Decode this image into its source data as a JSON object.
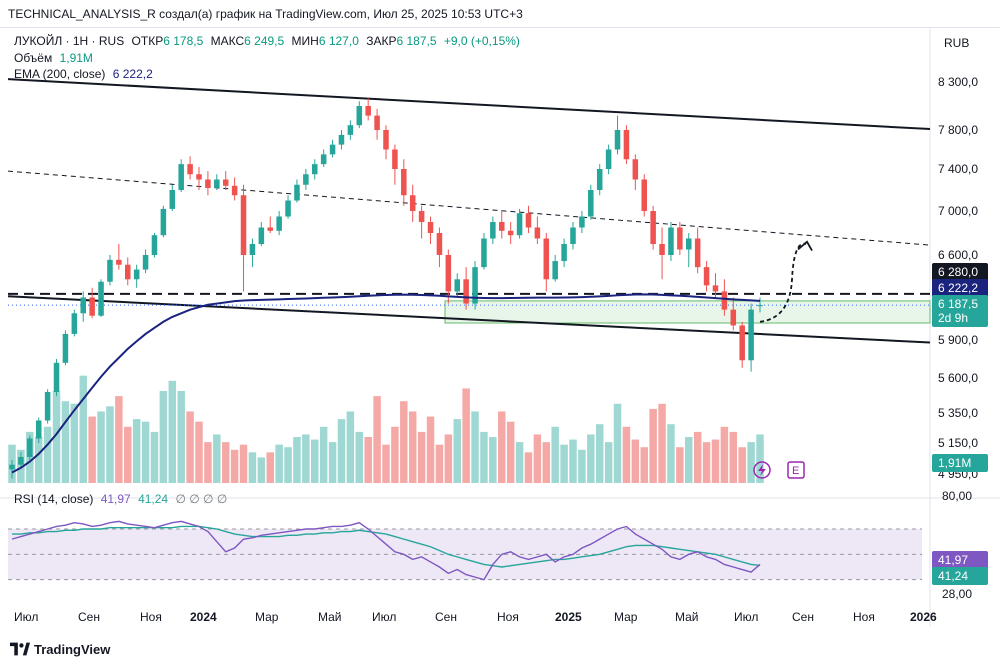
{
  "header": {
    "text": "TECHNICAL_ANALYSIS_R создал(а) график на TradingView.com, Июл 25, 2025 10:53 UTC+3"
  },
  "legend": {
    "symbol": "ЛУКОЙЛ · 1Н · RUS",
    "open_label": "ОТКР",
    "open": "6 178,5",
    "high_label": "МАКС",
    "high": "6 249,5",
    "low_label": "МИН",
    "low": "6 127,0",
    "close_label": "ЗАКР",
    "close": "6 187,5",
    "change": "+9,0 (+0,15%)",
    "volume_label": "Объём",
    "volume": "1,91M",
    "ema_label": "EMA (200, close)",
    "ema": "6 222,2",
    "rsi_label": "RSI (14, close)",
    "rsi": "41,97",
    "rsi_ma": "41,24",
    "rsi_extras": "∅ ∅ ∅ ∅"
  },
  "currency": "RUB",
  "branding": "TradingView",
  "colors": {
    "up": "#26a69a",
    "down": "#ef5350",
    "ema": "#1a237e",
    "rsi": "#7e57c2",
    "rsi_ma": "#26a69a",
    "band": "#ede7f6",
    "support_zone": "#e8f5e9"
  },
  "icons": [
    "flash-icon",
    "earnings-e-icon"
  ],
  "chart_data": {
    "type": "candlestick",
    "price_axis_ticks": [
      "8 300,0",
      "7 800,0",
      "7 400,0",
      "7 000,0",
      "6 600,0",
      "5 900,0",
      "5 600,0",
      "5 350,0",
      "5 150,0",
      "4 950,0"
    ],
    "price_axis_values": [
      8300,
      7800,
      7400,
      7000,
      6600,
      5900,
      5600,
      5350,
      5150,
      4950
    ],
    "price_labels": [
      {
        "text": "6 280,0",
        "kind": "level"
      },
      {
        "text": "6 222,2",
        "kind": "ema"
      },
      {
        "text": "6 187,5",
        "kind": "last"
      },
      {
        "text": "2d 9h",
        "kind": "countdown"
      },
      {
        "text": "1,91M",
        "kind": "volume"
      }
    ],
    "rsi_axis_ticks": [
      "80,00",
      "28,00"
    ],
    "rsi_values_labels": [
      "41,97",
      "41,24"
    ],
    "x_ticks": [
      "Июл",
      "Сен",
      "Ноя",
      "2024",
      "Мар",
      "Май",
      "Июл",
      "Сен",
      "Ноя",
      "2025",
      "Мар",
      "Май",
      "Июл",
      "Сен",
      "Ноя",
      "2026"
    ],
    "candles": [
      [
        4980,
        5040,
        4920,
        5010
      ],
      [
        5010,
        5090,
        4990,
        5060
      ],
      [
        5060,
        5200,
        5040,
        5180
      ],
      [
        5180,
        5320,
        5150,
        5300
      ],
      [
        5300,
        5520,
        5280,
        5500
      ],
      [
        5500,
        5750,
        5470,
        5720
      ],
      [
        5720,
        5980,
        5700,
        5950
      ],
      [
        5950,
        6150,
        5930,
        6120
      ],
      [
        6120,
        6300,
        6050,
        6250
      ],
      [
        6250,
        6330,
        6080,
        6100
      ],
      [
        6100,
        6400,
        6090,
        6380
      ],
      [
        6380,
        6600,
        6350,
        6560
      ],
      [
        6560,
        6700,
        6480,
        6520
      ],
      [
        6520,
        6580,
        6350,
        6400
      ],
      [
        6400,
        6520,
        6330,
        6480
      ],
      [
        6480,
        6650,
        6450,
        6600
      ],
      [
        6600,
        6800,
        6580,
        6780
      ],
      [
        6780,
        7050,
        6760,
        7020
      ],
      [
        7020,
        7250,
        7000,
        7200
      ],
      [
        7200,
        7500,
        7180,
        7450
      ],
      [
        7450,
        7530,
        7300,
        7350
      ],
      [
        7350,
        7420,
        7200,
        7300
      ],
      [
        7300,
        7380,
        7150,
        7220
      ],
      [
        7220,
        7350,
        7200,
        7300
      ],
      [
        7300,
        7380,
        7200,
        7240
      ],
      [
        7240,
        7320,
        7100,
        7150
      ],
      [
        7150,
        7250,
        6300,
        6600
      ],
      [
        6600,
        6750,
        6500,
        6700
      ],
      [
        6700,
        6900,
        6680,
        6850
      ],
      [
        6850,
        6950,
        6800,
        6820
      ],
      [
        6820,
        7000,
        6780,
        6950
      ],
      [
        6950,
        7150,
        6930,
        7100
      ],
      [
        7100,
        7300,
        7080,
        7250
      ],
      [
        7250,
        7400,
        7200,
        7350
      ],
      [
        7350,
        7500,
        7300,
        7450
      ],
      [
        7450,
        7600,
        7420,
        7550
      ],
      [
        7550,
        7700,
        7520,
        7650
      ],
      [
        7650,
        7800,
        7600,
        7750
      ],
      [
        7750,
        7900,
        7700,
        7850
      ],
      [
        7850,
        8100,
        7820,
        8050
      ],
      [
        8050,
        8130,
        7900,
        7950
      ],
      [
        7950,
        8020,
        7700,
        7800
      ],
      [
        7800,
        7850,
        7500,
        7600
      ],
      [
        7600,
        7650,
        7250,
        7400
      ],
      [
        7400,
        7500,
        7050,
        7150
      ],
      [
        7150,
        7250,
        6900,
        7000
      ],
      [
        7000,
        7050,
        6750,
        6900
      ],
      [
        6900,
        6950,
        6700,
        6800
      ],
      [
        6800,
        6850,
        6500,
        6600
      ],
      [
        6600,
        6650,
        6200,
        6300
      ],
      [
        6300,
        6450,
        6250,
        6400
      ],
      [
        6400,
        6500,
        6150,
        6200
      ],
      [
        6200,
        6550,
        6150,
        6500
      ],
      [
        6500,
        6800,
        6480,
        6750
      ],
      [
        6750,
        6950,
        6700,
        6900
      ],
      [
        6900,
        7000,
        6750,
        6820
      ],
      [
        6820,
        6900,
        6700,
        6780
      ],
      [
        6780,
        7020,
        6750,
        6980
      ],
      [
        6980,
        7050,
        6800,
        6850
      ],
      [
        6850,
        6950,
        6700,
        6750
      ],
      [
        6750,
        6800,
        6300,
        6400
      ],
      [
        6400,
        6600,
        6380,
        6550
      ],
      [
        6550,
        6750,
        6500,
        6700
      ],
      [
        6700,
        6900,
        6650,
        6850
      ],
      [
        6850,
        7000,
        6800,
        6950
      ],
      [
        6950,
        7250,
        6920,
        7200
      ],
      [
        7200,
        7450,
        7150,
        7400
      ],
      [
        7400,
        7650,
        7350,
        7600
      ],
      [
        7600,
        7950,
        7550,
        7800
      ],
      [
        7800,
        7850,
        7450,
        7500
      ],
      [
        7500,
        7550,
        7200,
        7300
      ],
      [
        7300,
        7350,
        6950,
        7000
      ],
      [
        7000,
        7050,
        6650,
        6700
      ],
      [
        6700,
        6850,
        6400,
        6600
      ],
      [
        6600,
        6900,
        6550,
        6850
      ],
      [
        6850,
        6900,
        6600,
        6650
      ],
      [
        6650,
        6800,
        6500,
        6750
      ],
      [
        6750,
        6850,
        6450,
        6500
      ],
      [
        6500,
        6550,
        6300,
        6350
      ],
      [
        6350,
        6450,
        6250,
        6300
      ],
      [
        6300,
        6400,
        6100,
        6150
      ],
      [
        6150,
        6250,
        5980,
        6020
      ],
      [
        6020,
        6050,
        5680,
        5740
      ],
      [
        5740,
        6200,
        5650,
        6150
      ],
      [
        6178.5,
        6249.5,
        6127,
        6187.5
      ]
    ],
    "volumes": [
      1.5,
      1.3,
      2.0,
      1.8,
      2.2,
      3.6,
      3.2,
      3.1,
      4.2,
      2.6,
      2.8,
      3.0,
      3.4,
      2.2,
      2.5,
      2.4,
      2.0,
      3.6,
      4.0,
      3.6,
      2.8,
      2.4,
      1.6,
      1.9,
      1.6,
      1.3,
      1.5,
      1.2,
      1.0,
      1.2,
      1.5,
      1.4,
      1.8,
      1.9,
      1.7,
      2.2,
      1.6,
      2.5,
      2.8,
      2.0,
      1.8,
      3.4,
      1.5,
      2.2,
      3.2,
      2.8,
      2.0,
      2.6,
      1.5,
      1.9,
      2.5,
      3.7,
      2.8,
      2.0,
      1.8,
      2.8,
      2.4,
      1.6,
      1.2,
      1.9,
      1.6,
      2.2,
      1.5,
      1.7,
      1.3,
      1.9,
      2.3,
      1.6,
      3.1,
      2.2,
      1.7,
      1.4,
      2.9,
      3.1,
      2.3,
      1.4,
      1.8,
      2.0,
      1.6,
      1.7,
      2.2,
      2.0,
      1.4,
      1.6,
      1.9
    ],
    "ema": [
      4960,
      4990,
      5030,
      5080,
      5140,
      5210,
      5290,
      5370,
      5450,
      5530,
      5610,
      5690,
      5760,
      5830,
      5890,
      5950,
      6000,
      6050,
      6090,
      6120,
      6150,
      6170,
      6190,
      6200,
      6210,
      6220,
      6225,
      6228,
      6230,
      6232,
      6235,
      6238,
      6240,
      6242,
      6245,
      6248,
      6250,
      6253,
      6256,
      6260,
      6264,
      6268,
      6271,
      6273,
      6274,
      6273,
      6271,
      6268,
      6264,
      6259,
      6255,
      6251,
      6248,
      6246,
      6245,
      6245,
      6246,
      6247,
      6248,
      6249,
      6249,
      6249,
      6250,
      6251,
      6253,
      6256,
      6259,
      6263,
      6268,
      6272,
      6275,
      6276,
      6275,
      6272,
      6268,
      6264,
      6260,
      6255,
      6250,
      6245,
      6240,
      6235,
      6230,
      6226,
      6222.2
    ],
    "rsi": [
      62,
      64,
      66,
      68,
      70,
      72,
      73,
      75,
      74,
      72,
      73,
      75,
      76,
      74,
      73,
      72,
      71,
      73,
      75,
      76,
      74,
      72,
      68,
      60,
      52,
      55,
      62,
      63,
      65,
      66,
      67,
      68,
      69,
      70,
      70,
      71,
      72,
      72,
      73,
      75,
      70,
      64,
      58,
      52,
      50,
      46,
      48,
      44,
      40,
      35,
      38,
      34,
      32,
      30,
      42,
      50,
      52,
      48,
      46,
      48,
      50,
      44,
      48,
      50,
      55,
      58,
      62,
      66,
      70,
      72,
      66,
      62,
      58,
      54,
      48,
      46,
      50,
      52,
      48,
      46,
      42,
      40,
      38,
      36,
      42
    ],
    "rsi_ma": [
      66,
      66,
      67,
      67,
      68,
      68,
      69,
      69,
      70,
      70,
      70,
      71,
      71,
      71,
      71,
      71,
      71,
      71,
      71,
      72,
      72,
      72,
      71,
      70,
      68,
      66,
      65,
      64,
      64,
      64,
      64,
      65,
      65,
      66,
      66,
      67,
      67,
      68,
      68,
      69,
      68,
      67,
      66,
      64,
      62,
      60,
      58,
      56,
      53,
      50,
      48,
      46,
      44,
      42,
      41,
      40,
      41,
      42,
      43,
      44,
      45,
      46,
      46,
      47,
      48,
      49,
      50,
      52,
      54,
      56,
      57,
      57,
      57,
      56,
      55,
      54,
      53,
      52,
      51,
      50,
      48,
      46,
      44,
      42,
      41.24
    ],
    "trendlines": [
      {
        "name": "upper-channel",
        "p1": [
          0,
          8330
        ],
        "p2": [
          1,
          7810
        ]
      },
      {
        "name": "lower-channel",
        "p1": [
          0,
          6260
        ],
        "p2": [
          1,
          5880
        ]
      },
      {
        "name": "mid-channel",
        "p1": [
          0,
          7380
        ],
        "p2": [
          1,
          6690
        ]
      },
      {
        "name": "resistance-level",
        "value": 6280
      }
    ]
  }
}
